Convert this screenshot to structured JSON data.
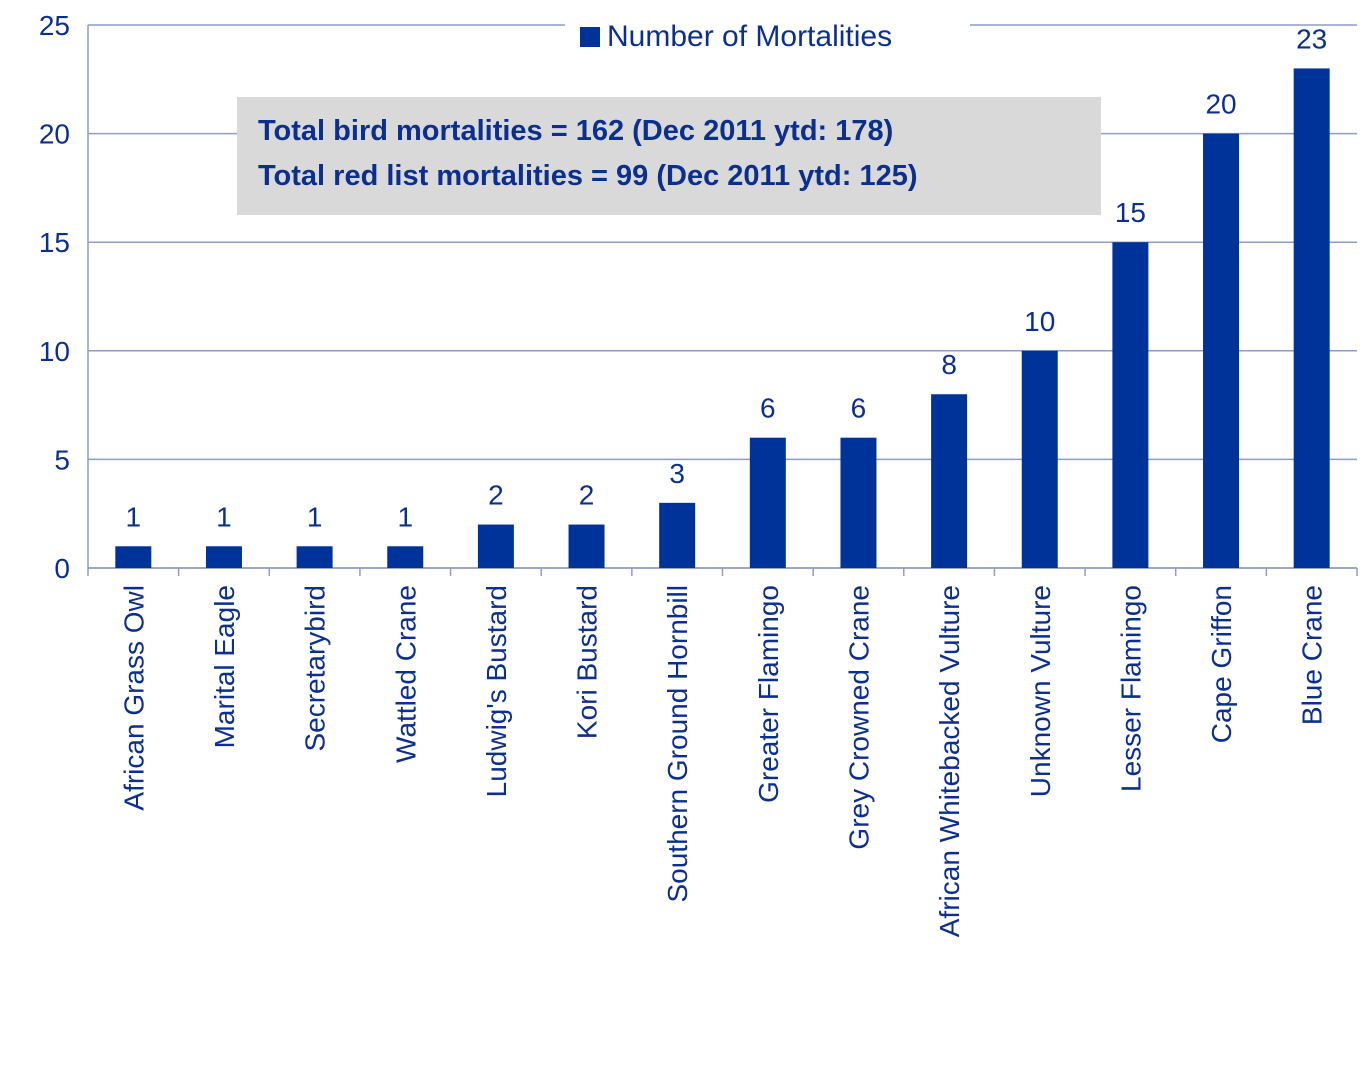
{
  "chart_data": {
    "type": "bar",
    "series": [
      {
        "name": "Number of Mortalities",
        "color": "#003399",
        "values": [
          1,
          1,
          1,
          1,
          2,
          2,
          3,
          6,
          6,
          8,
          10,
          15,
          20,
          23
        ]
      }
    ],
    "categories": [
      "African Grass Owl",
      "Marital Eagle",
      "Secretarybird",
      "Wattled Crane",
      "Ludwig's Bustard",
      "Kori Bustard",
      "Southern Ground Hornbill",
      "Greater Flamingo",
      "Grey Crowned Crane",
      "African Whitebacked Vulture",
      "Unknown Vulture",
      "Lesser Flamingo",
      "Cape Griffon",
      "Blue Crane"
    ],
    "ylim": [
      0,
      25
    ],
    "yticks": [
      0,
      5,
      10,
      15,
      20,
      25
    ],
    "grid": true,
    "legend": "top",
    "annotations": [
      "Total bird mortalities = 162 (Dec 2011 ytd: 178)",
      "Total red list mortalities = 99 (Dec 2011 ytd: 125)"
    ]
  }
}
